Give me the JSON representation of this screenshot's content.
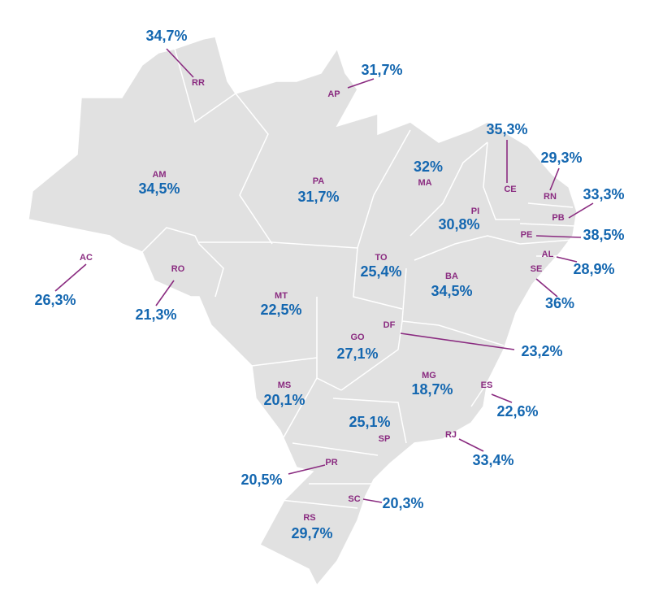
{
  "states": [
    {
      "code": "RR",
      "share": "34,7%"
    },
    {
      "code": "AP",
      "share": "31,7%"
    },
    {
      "code": "AM",
      "share": "34,5%"
    },
    {
      "code": "PA",
      "share": "31,7%"
    },
    {
      "code": "MA",
      "share": "32%"
    },
    {
      "code": "CE",
      "share": "35,3%"
    },
    {
      "code": "RN",
      "share": "29,3%"
    },
    {
      "code": "PB",
      "share": "33,3%"
    },
    {
      "code": "PI",
      "share": "30,8%"
    },
    {
      "code": "PE",
      "share": "38,5%"
    },
    {
      "code": "AL",
      "share": "28,9%"
    },
    {
      "code": "SE",
      "share": "36%"
    },
    {
      "code": "AC",
      "share": "26,3%"
    },
    {
      "code": "RO",
      "share": "21,3%"
    },
    {
      "code": "TO",
      "share": "25,4%"
    },
    {
      "code": "BA",
      "share": "34,5%"
    },
    {
      "code": "MT",
      "share": "22,5%"
    },
    {
      "code": "DF",
      "share": "23,2%"
    },
    {
      "code": "GO",
      "share": "27,1%"
    },
    {
      "code": "MG",
      "share": "18,7%"
    },
    {
      "code": "MS",
      "share": "20,1%"
    },
    {
      "code": "ES",
      "share": "22,6%"
    },
    {
      "code": "SP",
      "share": "25,1%"
    },
    {
      "code": "RJ",
      "share": "33,4%"
    },
    {
      "code": "PR",
      "share": "20,5%"
    },
    {
      "code": "SC",
      "share": "20,3%"
    },
    {
      "code": "RS",
      "share": "29,7%"
    }
  ]
}
